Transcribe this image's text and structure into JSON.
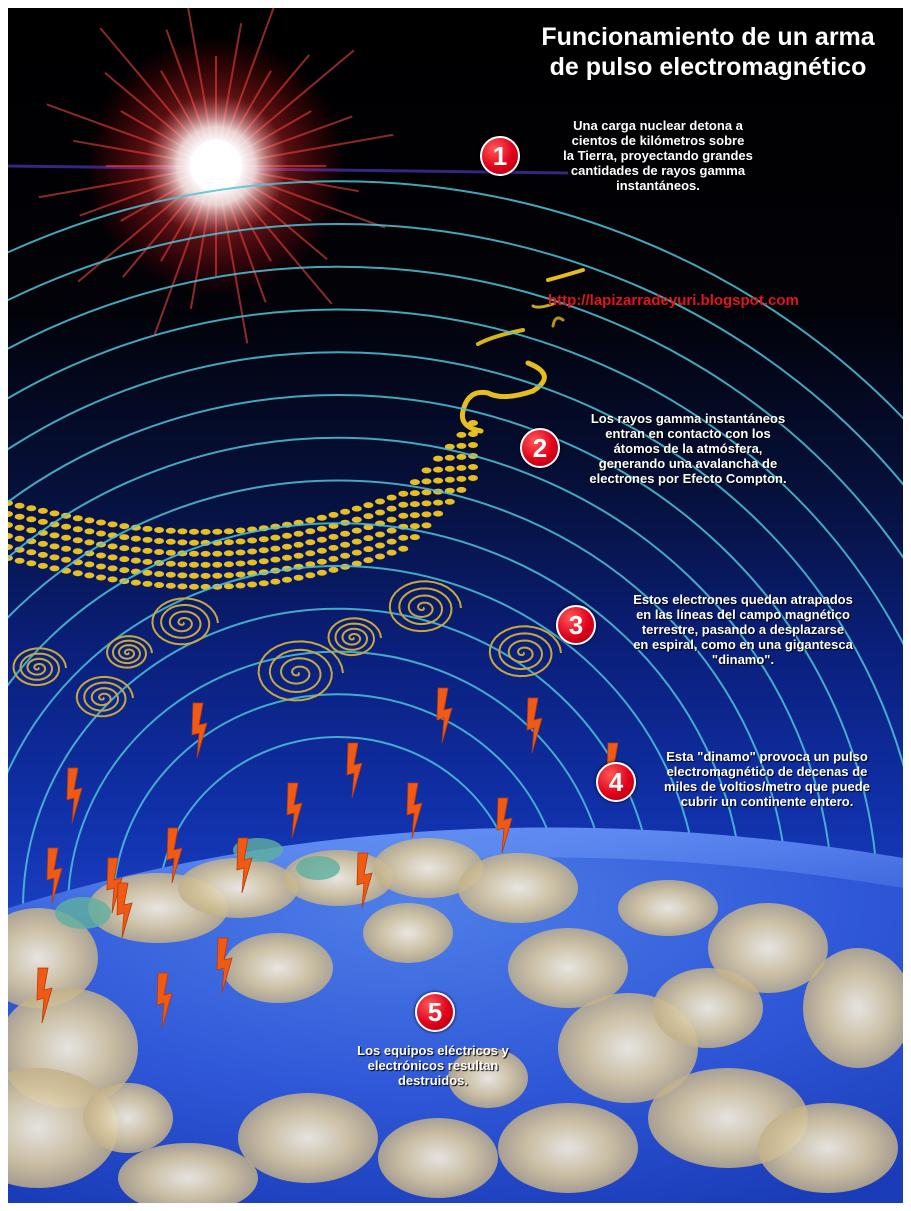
{
  "title": {
    "line1": "Funcionamiento de un arma",
    "line2": "de pulso electromagnético"
  },
  "website": "http://lapizarradeyuri.blogspot.com",
  "steps": [
    {
      "number": "1",
      "lines": [
        "Una carga nuclear detona a",
        "cientos de kilómetros sobre",
        "la Tierra, proyectando grandes",
        "cantidades de rayos gamma",
        "instantáneos."
      ]
    },
    {
      "number": "2",
      "lines": [
        "Los rayos gamma instantáneos",
        "entran en contacto con los",
        "átomos de la atmósfera,",
        "generando una avalancha de",
        "electrones por Efecto Compton."
      ]
    },
    {
      "number": "3",
      "lines": [
        "Estos electrones quedan atrapados",
        "en las líneas del campo magnético",
        "terrestre, pasando a desplazarse",
        "en espiral, como en una gigantesca",
        "\"dinamo\"."
      ]
    },
    {
      "number": "4",
      "lines": [
        "Esta \"dinamo\" provoca un pulso",
        "electromagnético de decenas de",
        "miles de voltios/metro que puede",
        "cubrir un continente entero."
      ]
    },
    {
      "number": "5",
      "lines": [
        "Los equipos eléctricos y",
        "electrónicos resultan",
        "destruidos."
      ]
    }
  ],
  "colors": {
    "badge": "#e0001a",
    "url": "#e2141e",
    "field_lines": "#4fc3d8",
    "spirals": "#c8a83a",
    "electrons": "#ffd21e",
    "lightning": "#f05a14",
    "clouds": "#e8dcc0"
  },
  "icons": {
    "explosion": "nuclear-flash-icon",
    "bolt": "lightning-bolt-icon"
  }
}
